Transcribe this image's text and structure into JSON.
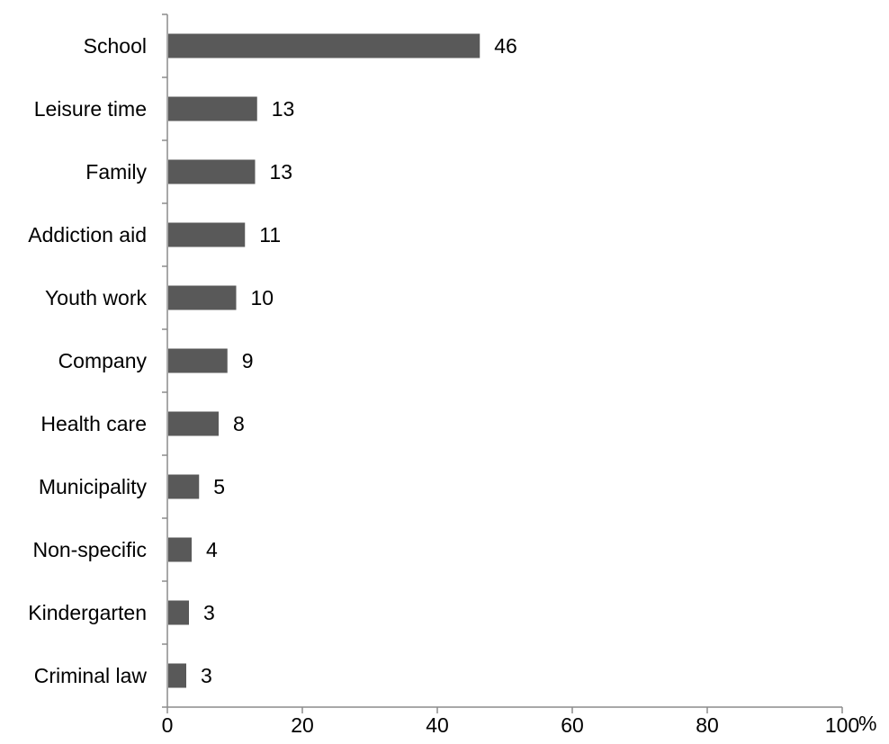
{
  "chart_data": {
    "type": "bar",
    "orientation": "horizontal",
    "categories": [
      "School",
      "Leisure time",
      "Family",
      "Addiction aid",
      "Youth work",
      "Company",
      "Health care",
      "Municipality",
      "Non-specific",
      "Kindergarten",
      "Criminal law"
    ],
    "values": [
      46,
      13,
      13,
      11,
      10,
      9,
      8,
      5,
      4,
      3,
      3
    ],
    "bar_values": [
      46.3,
      13.3,
      13.0,
      11.5,
      10.2,
      8.9,
      7.6,
      4.7,
      3.6,
      3.2,
      2.8
    ],
    "xlim": [
      0,
      100
    ],
    "xticks": [
      0,
      20,
      40,
      60,
      80,
      100
    ],
    "x_unit": "%",
    "title": "",
    "xlabel": "",
    "ylabel": "",
    "grid": false,
    "legend": "none",
    "bar_color": "#595959"
  }
}
